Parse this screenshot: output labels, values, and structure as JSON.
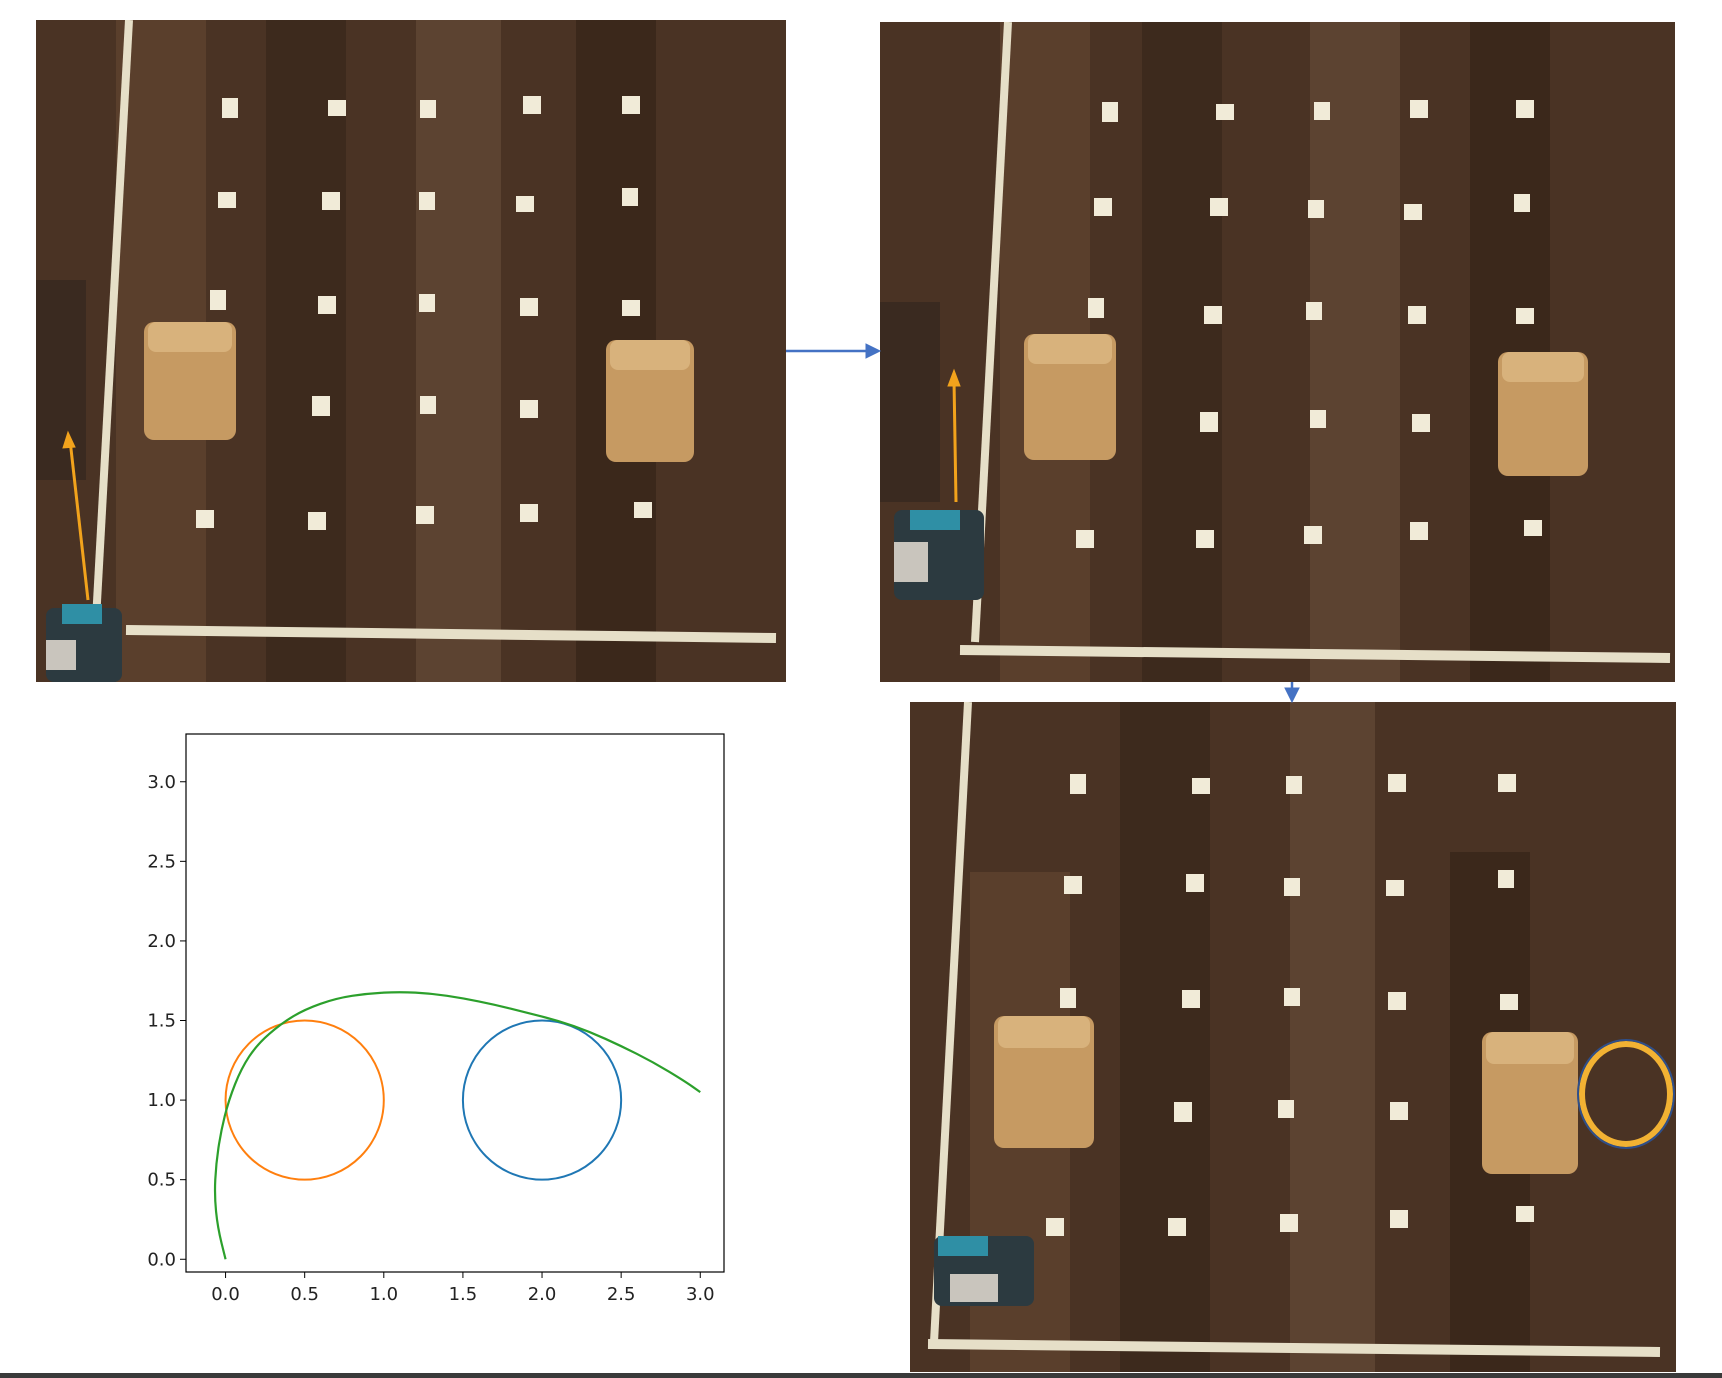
{
  "figure": {
    "panels": [
      {
        "id": "photo-1",
        "kind": "photo",
        "robot_heading_arrow_color": "#f2a31c"
      },
      {
        "id": "photo-2",
        "kind": "photo",
        "robot_heading_arrow_color": "#f2a31c"
      },
      {
        "id": "photo-3",
        "kind": "photo",
        "highlight_circle_color": "#f2b233"
      }
    ],
    "flow_arrows": [
      {
        "from": "photo-1",
        "to": "photo-2",
        "color": "#4472c4"
      },
      {
        "from": "photo-2",
        "to": "photo-3",
        "color": "#4472c4"
      }
    ],
    "colors": {
      "floor": "#4a3324",
      "tape": "#e6dfc8",
      "cork_block": "#c69a62",
      "flow_arrow": "#4472c4"
    }
  },
  "chart_data": {
    "type": "line",
    "title": "",
    "xlabel": "",
    "ylabel": "",
    "xlim": [
      -0.25,
      3.15
    ],
    "ylim": [
      -0.08,
      3.3
    ],
    "xticks": [
      "0.0",
      "0.5",
      "1.0",
      "1.5",
      "2.0",
      "2.5",
      "3.0"
    ],
    "yticks": [
      "0.0",
      "0.5",
      "1.0",
      "1.5",
      "2.0",
      "2.5",
      "3.0"
    ],
    "grid": false,
    "legend": "none",
    "circles": [
      {
        "center": [
          0.5,
          1.0
        ],
        "radius": 0.5,
        "color": "#ff7f0e"
      },
      {
        "center": [
          2.0,
          1.0
        ],
        "radius": 0.5,
        "color": "#1f77b4"
      }
    ],
    "series": [
      {
        "color": "#2ca02c",
        "x": [
          0.0,
          -0.05,
          -0.07,
          -0.06,
          -0.03,
          0.02,
          0.1,
          0.2,
          0.35,
          0.5,
          0.7,
          0.9,
          1.1,
          1.3,
          1.5,
          1.7,
          1.9,
          2.1,
          2.3,
          2.5,
          2.7,
          2.9,
          3.0
        ],
        "y": [
          0.0,
          0.2,
          0.4,
          0.6,
          0.8,
          1.0,
          1.2,
          1.35,
          1.48,
          1.57,
          1.64,
          1.67,
          1.68,
          1.67,
          1.64,
          1.6,
          1.55,
          1.5,
          1.43,
          1.34,
          1.24,
          1.12,
          1.05
        ]
      }
    ]
  }
}
